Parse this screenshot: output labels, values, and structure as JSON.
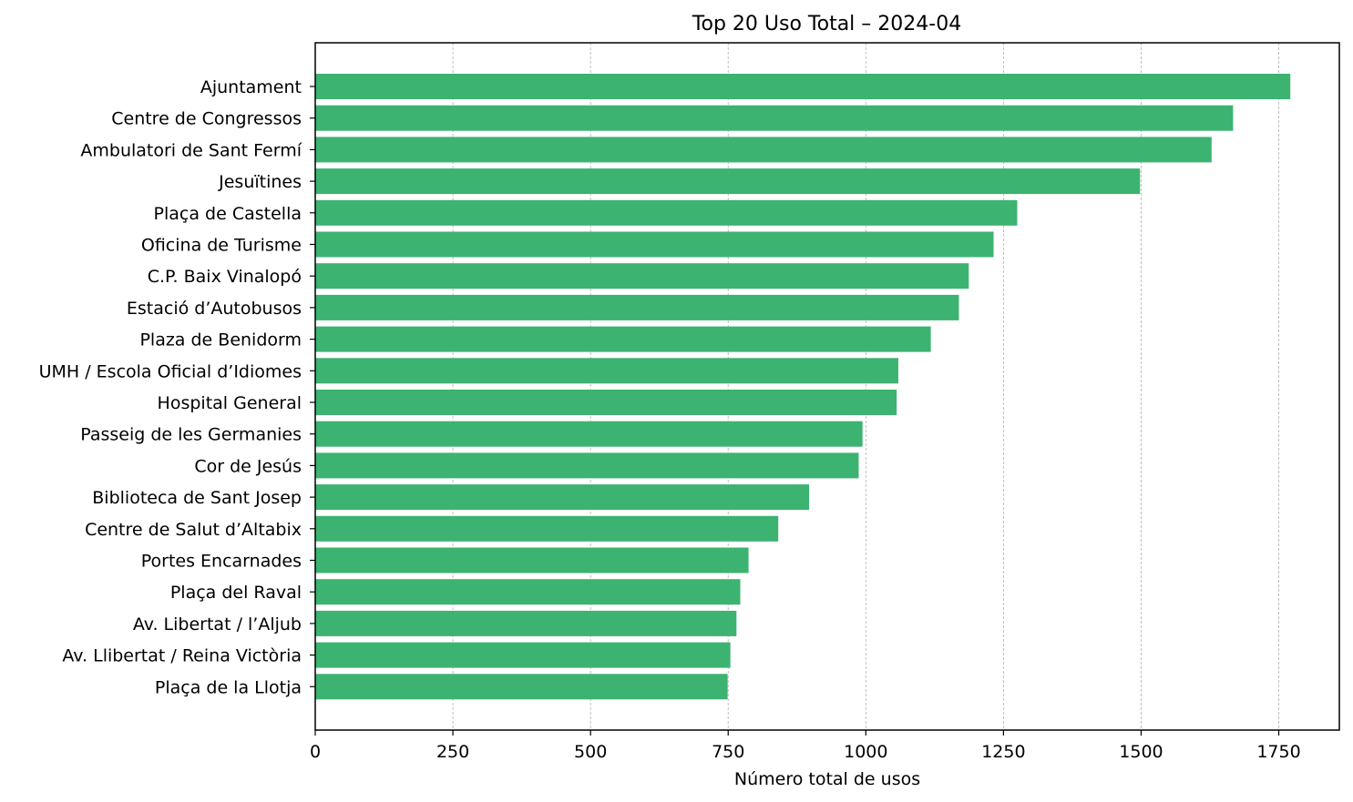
{
  "chart_data": {
    "type": "bar",
    "orientation": "horizontal",
    "title": "Top 20 Uso Total – 2024-04",
    "xlabel": "Número total de usos",
    "ylabel": "",
    "xlim": [
      0,
      1860
    ],
    "xticks": [
      0,
      250,
      500,
      750,
      1000,
      1250,
      1500,
      1750
    ],
    "grid": "x-dashed",
    "bar_color": "#3cb371",
    "categories": [
      "Ajuntament",
      "Centre de Congressos",
      "Ambulatori de Sant Fermí",
      "Jesuïtines",
      "Plaça de Castella",
      "Oficina de Turisme",
      "C.P. Baix Vinalopó",
      "Estació d’Autobusos",
      "Plaza de Benidorm",
      "UMH / Escola Oficial d’Idiomes",
      "Hospital General",
      "Passeig de les Germanies",
      "Cor de Jesús",
      "Biblioteca de Sant Josep",
      "Centre de Salut d’Altabix",
      "Portes Encarnades",
      "Plaça del Raval",
      "Av. Libertat / l’Aljub",
      "Av. Llibertat / Reina Victòria",
      "Plaça de la Llotja"
    ],
    "values": [
      1771,
      1667,
      1628,
      1498,
      1275,
      1232,
      1187,
      1169,
      1118,
      1059,
      1056,
      994,
      987,
      897,
      841,
      787,
      772,
      765,
      754,
      749
    ]
  }
}
